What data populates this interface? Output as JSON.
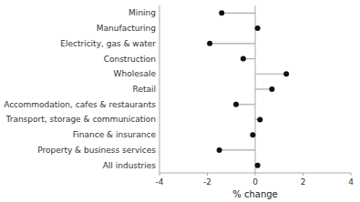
{
  "chart_data": {
    "type": "lollipop",
    "orientation": "horizontal",
    "categories": [
      "Mining",
      "Manufacturing",
      "Electricity, gas & water",
      "Construction",
      "Wholesale",
      "Retail",
      "Accommodation, cafes & restaurants",
      "Transport, storage & communication",
      "Finance & insurance",
      "Property & business services",
      "All industries"
    ],
    "values": [
      -1.4,
      0.1,
      -1.9,
      -0.5,
      1.3,
      0.7,
      -0.8,
      0.2,
      -0.1,
      -1.5,
      0.1
    ],
    "xlim": [
      -4,
      4
    ],
    "xticks": [
      -4,
      -2,
      0,
      2,
      4
    ],
    "xlabel": "% change",
    "color": "#111111"
  }
}
